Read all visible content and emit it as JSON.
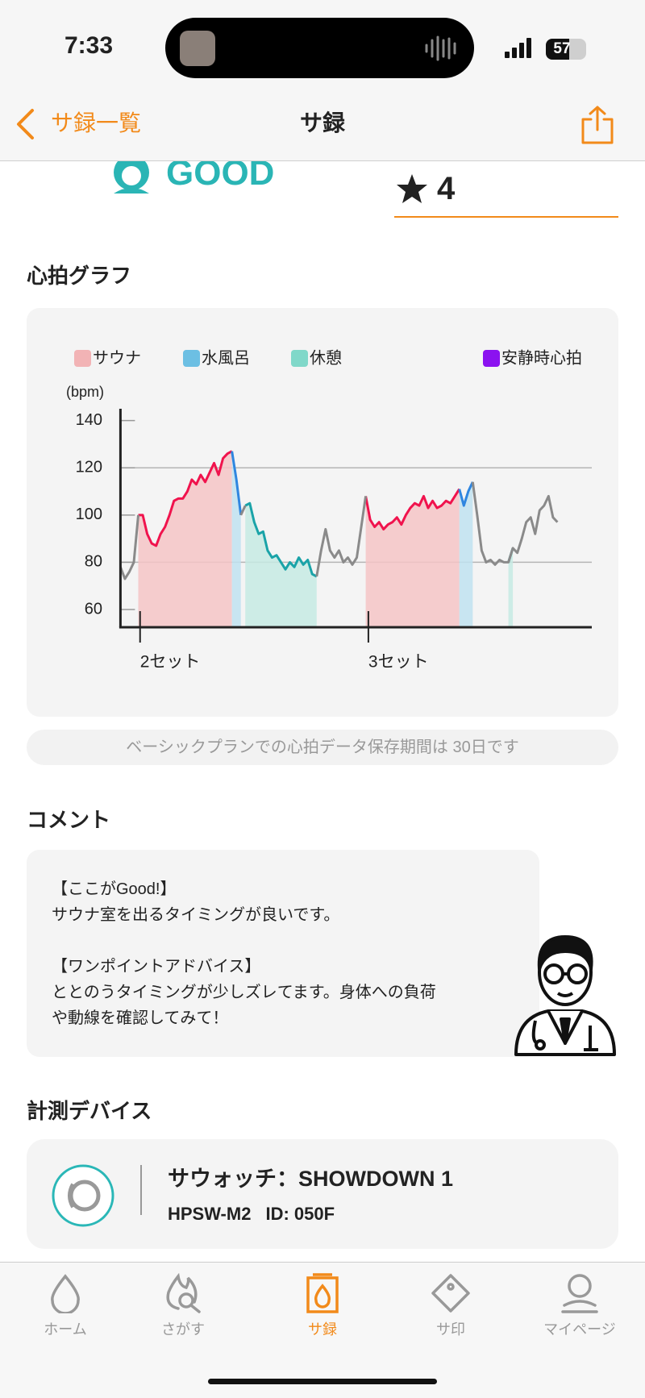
{
  "status": {
    "time": "7:33",
    "battery": "57"
  },
  "nav": {
    "back": "サ録一覧",
    "title": "サ録"
  },
  "rating": {
    "condition": "GOOD",
    "stars": 4
  },
  "heart_section": {
    "title": "心拍グラフ",
    "note": "ベーシックプランでの心拍データ保存期間は 30日です"
  },
  "chart_data": {
    "type": "line",
    "y_label": "(bpm)",
    "ylim": [
      52.5,
      145
    ],
    "yticks": [
      60,
      80,
      100,
      120,
      140
    ],
    "grid_lines": [
      80,
      120
    ],
    "xlim": [
      0,
      105.7
    ],
    "set_markers": [
      {
        "label": "2セット",
        "x": 4.4
      },
      {
        "label": "3セット",
        "x": 55.6
      }
    ],
    "series": [
      {
        "name": "サウナ",
        "color": "#f0134d",
        "legend_color": "#f2b3b5",
        "fill": "#f4c4c6",
        "values": [
          null,
          null,
          null,
          null,
          100,
          100,
          92,
          88,
          87,
          92,
          95,
          100,
          106,
          107,
          107,
          110,
          115,
          113,
          117,
          114,
          118,
          122,
          117,
          124,
          126,
          127,
          null,
          null,
          null,
          null,
          null,
          null,
          null,
          null,
          null,
          null,
          null,
          null,
          null,
          null,
          null,
          null,
          null,
          null,
          null,
          null,
          null,
          null,
          null,
          null,
          null,
          null,
          null,
          null,
          null,
          108,
          98,
          95,
          97,
          94,
          96,
          97,
          99,
          96,
          100,
          103,
          105,
          104,
          108,
          103,
          106,
          103,
          104,
          106,
          105,
          108,
          111,
          null,
          null,
          null,
          null,
          null,
          null,
          null,
          null,
          null,
          null,
          null,
          null,
          null,
          null,
          null,
          null,
          null,
          null,
          null,
          null,
          null,
          null
        ]
      },
      {
        "name": "水風呂",
        "color": "#2f86e0",
        "legend_color": "#6cbfe3",
        "fill": "#bfe2f0",
        "values": [
          null,
          null,
          null,
          null,
          null,
          null,
          null,
          null,
          null,
          null,
          null,
          null,
          null,
          null,
          null,
          null,
          null,
          null,
          null,
          null,
          null,
          null,
          null,
          null,
          null,
          127,
          115,
          100,
          null,
          null,
          null,
          null,
          null,
          null,
          null,
          null,
          null,
          null,
          null,
          null,
          null,
          null,
          null,
          null,
          null,
          null,
          null,
          null,
          null,
          null,
          null,
          null,
          null,
          null,
          null,
          null,
          null,
          null,
          null,
          null,
          null,
          null,
          null,
          null,
          null,
          null,
          null,
          null,
          null,
          null,
          null,
          null,
          null,
          null,
          null,
          null,
          111,
          104,
          110,
          114,
          null,
          null,
          null,
          null,
          null,
          null,
          null,
          null,
          null,
          null,
          null,
          null,
          null,
          null,
          null,
          null,
          null,
          null,
          null
        ]
      },
      {
        "name": "休憩",
        "color": "#1aa3a8",
        "legend_color": "#80d8c9",
        "fill": "#c6eae3",
        "values": [
          null,
          null,
          null,
          null,
          null,
          null,
          null,
          null,
          null,
          null,
          null,
          null,
          null,
          null,
          null,
          null,
          null,
          null,
          null,
          null,
          null,
          null,
          null,
          null,
          null,
          null,
          null,
          null,
          104,
          105,
          97,
          92,
          93,
          85,
          82,
          83,
          80,
          77,
          80,
          78,
          82,
          79,
          81,
          75,
          74,
          null,
          null,
          null,
          null,
          null,
          null,
          null,
          null,
          null,
          null,
          null,
          null,
          null,
          null,
          null,
          null,
          null,
          null,
          null,
          null,
          null,
          null,
          null,
          null,
          null,
          null,
          null,
          null,
          null,
          null,
          null,
          null,
          null,
          null,
          null,
          null,
          null,
          null,
          null,
          null,
          null,
          null,
          80,
          86,
          null,
          null,
          null,
          null,
          null,
          null,
          null,
          null,
          null,
          null
        ]
      },
      {
        "color": "#8a8a8a",
        "values": [
          78,
          73,
          76,
          80,
          100,
          null,
          null,
          null,
          null,
          null,
          null,
          null,
          null,
          null,
          null,
          null,
          null,
          null,
          null,
          null,
          null,
          null,
          null,
          null,
          null,
          null,
          null,
          100,
          104,
          null,
          null,
          null,
          null,
          null,
          null,
          null,
          null,
          null,
          null,
          null,
          null,
          null,
          null,
          null,
          74,
          85,
          94,
          85,
          82,
          85,
          80,
          82,
          79,
          82,
          95,
          108,
          null,
          null,
          null,
          null,
          null,
          null,
          null,
          null,
          null,
          null,
          null,
          null,
          null,
          null,
          null,
          null,
          null,
          null,
          null,
          null,
          null,
          null,
          null,
          114,
          100,
          85,
          80,
          81,
          79,
          81,
          80,
          80,
          86,
          84,
          90,
          97,
          99,
          92,
          102,
          104,
          108,
          99,
          97
        ]
      },
      {
        "name": "安静時心拍",
        "color": "#8b12f0",
        "legend_color": "#8b12f0",
        "values": [
          null,
          null,
          null,
          null,
          null,
          null,
          null,
          null,
          null,
          null,
          null,
          null,
          null,
          null,
          null,
          null,
          null,
          null,
          null,
          null,
          null,
          null,
          null,
          null,
          null,
          null,
          null,
          null,
          null,
          null,
          null,
          null,
          null,
          null,
          null,
          null,
          null,
          null,
          null,
          null,
          null,
          null,
          null,
          null,
          null,
          null,
          null,
          null,
          null,
          null,
          null,
          null,
          null,
          null,
          null,
          null,
          null,
          null,
          null,
          null,
          null,
          null,
          null,
          null,
          null,
          null,
          null,
          null,
          null,
          null,
          null,
          null,
          null,
          null,
          null,
          null,
          null,
          null,
          null,
          null,
          null,
          null,
          null,
          null,
          null,
          null,
          null,
          null,
          null,
          null,
          null,
          null,
          null,
          null,
          null,
          null,
          null,
          null,
          null
        ]
      }
    ]
  },
  "comment": {
    "title": "コメント",
    "lines": [
      "【ここがGood!】",
      "サウナ室を出るタイミングが良いです。",
      "【ワンポイントアドバイス】",
      "ととのうタイミングが少しズレてます。身体への負荷",
      "や動線を確認してみて！"
    ]
  },
  "device": {
    "title": "計測デバイス",
    "name": "サウォッチ：SHOWDOWN 1",
    "model": "HPSW-M2",
    "id": "ID: 050F"
  },
  "tabs": [
    "ホーム",
    "さがす",
    "サ録",
    "サ印",
    "マイページ"
  ],
  "active_tab": 2
}
